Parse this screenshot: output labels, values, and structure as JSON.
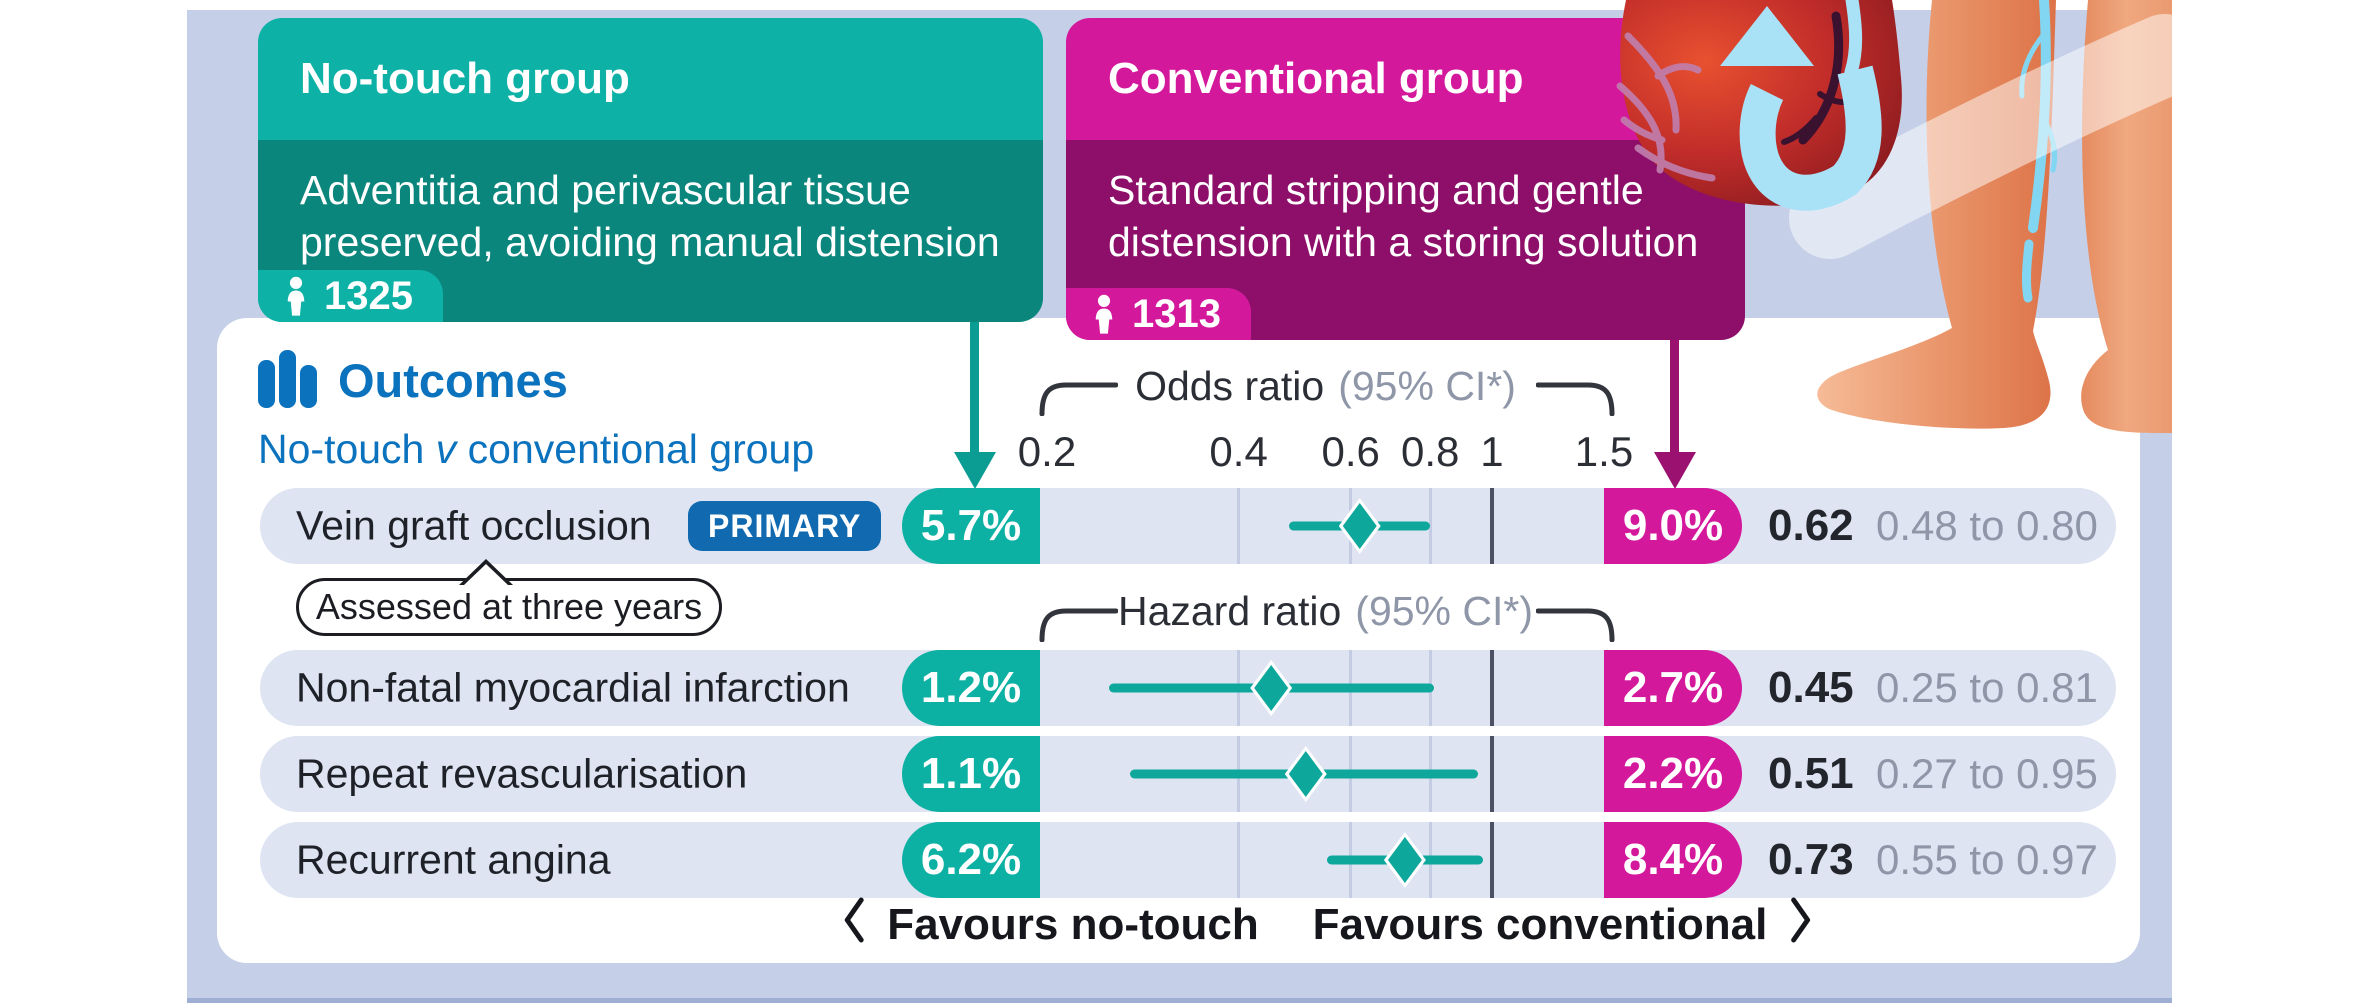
{
  "groups": {
    "no_touch": {
      "title": "No-touch group",
      "description": "Adventitia and perivascular tissue preserved, avoiding manual distension",
      "count": "1325",
      "header_color": "#0db1a6",
      "body_color": "#0b867c"
    },
    "conventional": {
      "title": "Conventional group",
      "description": "Standard stripping and gentle distension with a storing solution",
      "count": "1313",
      "header_color": "#d4189c",
      "body_color": "#8e0f6a"
    }
  },
  "outcomes": {
    "heading": "Outcomes",
    "subtitle_pre": "No-touch ",
    "subtitle_mid": "v",
    "subtitle_post": " conventional group"
  },
  "badge_primary": "PRIMARY",
  "tooltip": "Assessed at three years",
  "axis": {
    "odds_label": "Odds ratio",
    "hazard_label": "Hazard ratio",
    "ci_label": "(95% CI*)"
  },
  "footer": {
    "favours_left": "Favours no-touch",
    "favours_right": "Favours conventional"
  },
  "colors": {
    "background": "#c5cfe8",
    "teal": "#0db1a6",
    "teal_dark": "#0b867c",
    "magenta": "#d4189c",
    "magenta_dark": "#8e0f6a",
    "blue": "#0b72be",
    "badge_blue": "#1169b0",
    "row_bg": "#dee4f2",
    "ci_teal": "#0ea79c",
    "gray_text": "#8e96a8"
  },
  "chart_data": {
    "type": "scatter",
    "variant": "forest-plot",
    "title": "Outcomes",
    "subtitle": "No-touch v conventional group",
    "x_scale": "log",
    "x_min": 0.2,
    "x_max": 1.5,
    "x_ticks": [
      0.2,
      0.4,
      0.6,
      0.8,
      1,
      1.5
    ],
    "x_tick_labels": [
      "0.2",
      "0.4",
      "0.6",
      "0.8",
      "1",
      "1.5"
    ],
    "gridline_ticks": [
      0.4,
      0.6,
      0.8
    ],
    "reference_line": 1,
    "series": [
      {
        "label": "Vein graft occlusion",
        "badge": "PRIMARY",
        "measure": "Odds ratio",
        "note": "Assessed at three years",
        "no_touch_pct": "5.7%",
        "conventional_pct": "9.0%",
        "estimate": 0.62,
        "ci_low": 0.48,
        "ci_high": 0.8,
        "estimate_text": "0.62",
        "ci_text": "0.48 to 0.80"
      },
      {
        "label": "Non-fatal myocardial infarction",
        "measure": "Hazard ratio",
        "no_touch_pct": "1.2%",
        "conventional_pct": "2.7%",
        "estimate": 0.45,
        "ci_low": 0.25,
        "ci_high": 0.81,
        "estimate_text": "0.45",
        "ci_text": "0.25 to 0.81"
      },
      {
        "label": "Repeat revascularisation",
        "measure": "Hazard ratio",
        "no_touch_pct": "1.1%",
        "conventional_pct": "2.2%",
        "estimate": 0.51,
        "ci_low": 0.27,
        "ci_high": 0.95,
        "estimate_text": "0.51",
        "ci_text": "0.27 to 0.95"
      },
      {
        "label": "Recurrent angina",
        "measure": "Hazard ratio",
        "no_touch_pct": "6.2%",
        "conventional_pct": "8.4%",
        "estimate": 0.73,
        "ci_low": 0.55,
        "ci_high": 0.97,
        "estimate_text": "0.73",
        "ci_text": "0.55 to 0.97"
      }
    ],
    "footnote_left": "Favours no-touch",
    "footnote_right": "Favours conventional"
  }
}
